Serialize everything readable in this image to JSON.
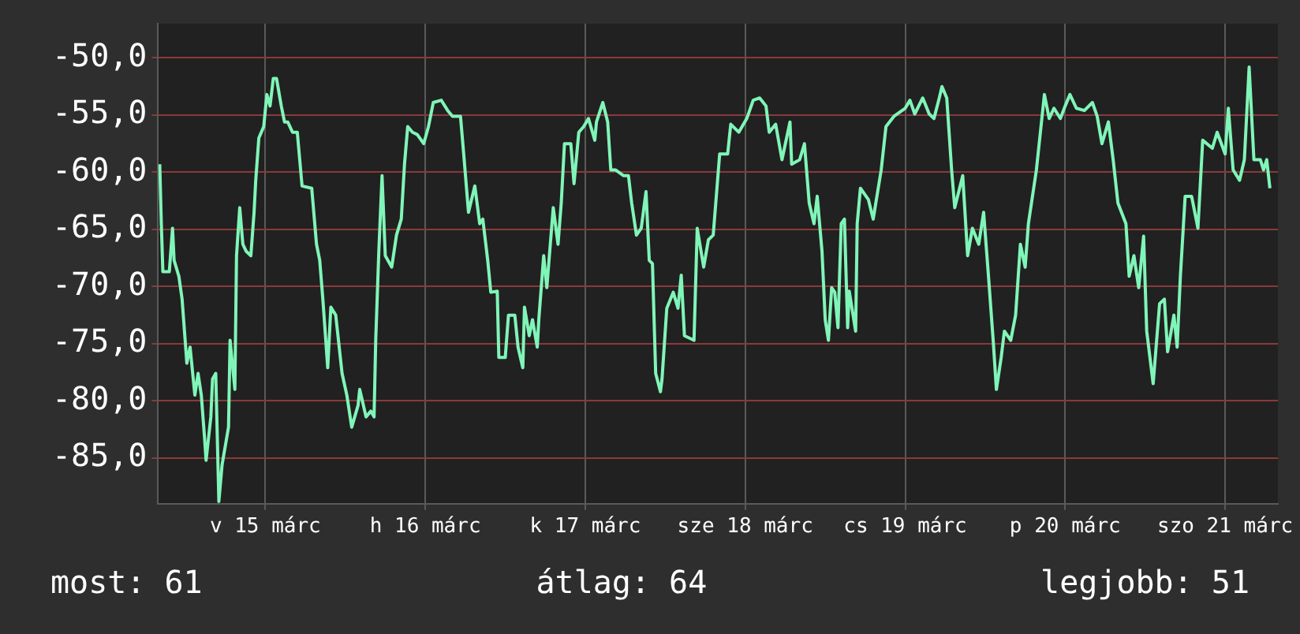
{
  "chart_data": {
    "type": "line",
    "annotations": [
      "most: 61",
      "átlag: 64",
      "legjobb: 51"
    ],
    "xlim": [
      "--03-14T19:55",
      "--03-21T19:55"
    ],
    "xticks": [
      {
        "value": "--03-15T12:00",
        "label": "v 15 márc"
      },
      {
        "value": "--03-16T12:00",
        "label": "h 16 márc"
      },
      {
        "value": "--03-17T12:00",
        "label": "k 17 márc"
      },
      {
        "value": "--03-18T12:00",
        "label": "sze 18 márc"
      },
      {
        "value": "--03-19T12:00",
        "label": "cs 19 márc"
      },
      {
        "value": "--03-20T12:00",
        "label": "p 20 márc"
      },
      {
        "value": "--03-21T12:00",
        "label": "szo 21 márc"
      }
    ],
    "ylim": [
      -89,
      -47
    ],
    "yticks": [
      {
        "value": -85,
        "label": "-85,0"
      },
      {
        "value": -80,
        "label": "-80,0"
      },
      {
        "value": -75,
        "label": "-75,0"
      },
      {
        "value": -70,
        "label": "-70,0"
      },
      {
        "value": -65,
        "label": "-65,0"
      },
      {
        "value": -60,
        "label": "-60,0"
      },
      {
        "value": -55,
        "label": "-55,0"
      },
      {
        "value": -50,
        "label": "-50,0"
      }
    ],
    "grid": true,
    "line_style": "solid",
    "marker": "none",
    "legend": false,
    "series": [
      {
        "color": "#80f5b8",
        "x": [
          "--03-14T20:10",
          "--03-14T20:24",
          "--03-14T20:38",
          "--03-14T21:36",
          "--03-14T22:05",
          "--03-14T22:19",
          "--03-14T23:02",
          "--03-14T23:31",
          "--03-15T00:14",
          "--03-15T00:43",
          "--03-15T01:26",
          "--03-15T01:55",
          "--03-15T02:24",
          "--03-15T02:53",
          "--03-15T03:07",
          "--03-15T03:50",
          "--03-15T04:05",
          "--03-15T04:34",
          "--03-15T05:02",
          "--03-15T05:31",
          "--03-15T06:29",
          "--03-15T06:43",
          "--03-15T07:26",
          "--03-15T07:41",
          "--03-15T08:10",
          "--03-15T08:38",
          "--03-15T09:07",
          "--03-15T09:50",
          "--03-15T10:19",
          "--03-15T10:34",
          "--03-15T11:02",
          "--03-15T11:46",
          "--03-15T12:14",
          "--03-15T12:43",
          "--03-15T13:12",
          "--03-15T13:41",
          "--03-15T14:24",
          "--03-15T14:53",
          "--03-15T15:22",
          "--03-15T16:05",
          "--03-15T16:48",
          "--03-15T17:31",
          "--03-15T18:58",
          "--03-15T19:41",
          "--03-15T20:10",
          "--03-15T20:38",
          "--03-15T21:22",
          "--03-15T21:50",
          "--03-15T22:34",
          "--03-15T23:31",
          "--03-16T00:14",
          "--03-16T00:58",
          "--03-16T01:55",
          "--03-16T02:10",
          "--03-16T03:07",
          "--03-16T03:50",
          "--03-16T04:19",
          "--03-16T04:34",
          "--03-16T05:02",
          "--03-16T05:31",
          "--03-16T06:00",
          "--03-16T06:58",
          "--03-16T07:41",
          "--03-16T08:24",
          "--03-16T08:53",
          "--03-16T09:22",
          "--03-16T10:05",
          "--03-16T10:48",
          "--03-16T11:46",
          "--03-16T12:29",
          "--03-16T13:12",
          "--03-16T14:24",
          "--03-16T15:22",
          "--03-16T16:05",
          "--03-16T17:17",
          "--03-16T17:46",
          "--03-16T18:29",
          "--03-16T19:26",
          "--03-16T20:10",
          "--03-16T20:38",
          "--03-16T21:22",
          "--03-16T21:50",
          "--03-16T22:48",
          "--03-16T23:02",
          "--03-17T00:00",
          "--03-17T00:29",
          "--03-17T01:26",
          "--03-17T01:55",
          "--03-17T02:38",
          "--03-17T02:53",
          "--03-17T03:36",
          "--03-17T04:05",
          "--03-17T04:48",
          "--03-17T05:02",
          "--03-17T05:46",
          "--03-17T06:14",
          "--03-17T07:12",
          "--03-17T07:55",
          "--03-17T08:24",
          "--03-17T08:53",
          "--03-17T09:50",
          "--03-17T10:19",
          "--03-17T11:02",
          "--03-17T11:46",
          "--03-17T12:29",
          "--03-17T13:26",
          "--03-17T13:41",
          "--03-17T14:38",
          "--03-17T15:22",
          "--03-17T15:50",
          "--03-17T16:34",
          "--03-17T17:46",
          "--03-17T18:29",
          "--03-17T18:58",
          "--03-17T19:41",
          "--03-17T20:24",
          "--03-17T21:07",
          "--03-17T21:36",
          "--03-17T22:05",
          "--03-17T22:34",
          "--03-17T23:17",
          "--03-17T23:31",
          "--03-18T00:14",
          "--03-18T01:12",
          "--03-18T01:55",
          "--03-18T02:24",
          "--03-18T02:53",
          "--03-18T04:19",
          "--03-18T04:48",
          "--03-18T05:46",
          "--03-18T06:29",
          "--03-18T07:12",
          "--03-18T08:10",
          "--03-18T09:22",
          "--03-18T09:50",
          "--03-18T11:02",
          "--03-18T12:14",
          "--03-18T13:12",
          "--03-18T14:10",
          "--03-18T15:07",
          "--03-18T15:36",
          "--03-18T16:34",
          "--03-18T17:31",
          "--03-18T18:43",
          "--03-18T18:58",
          "--03-18T20:10",
          "--03-18T20:53",
          "--03-18T21:36",
          "--03-18T22:19",
          "--03-18T22:48",
          "--03-18T23:31",
          "--03-19T00:00",
          "--03-19T00:29",
          "--03-19T00:58",
          "--03-19T01:26",
          "--03-19T01:55",
          "--03-19T02:24",
          "--03-19T02:53",
          "--03-19T03:22",
          "--03-19T03:36",
          "--03-19T04:34",
          "--03-19T04:48",
          "--03-19T05:17",
          "--03-19T06:29",
          "--03-19T07:12",
          "--03-19T08:24",
          "--03-19T09:07",
          "--03-19T10:19",
          "--03-19T12:00",
          "--03-19T12:43",
          "--03-19T13:26",
          "--03-19T14:38",
          "--03-19T15:36",
          "--03-19T16:19",
          "--03-19T17:02",
          "--03-19T17:31",
          "--03-19T18:14",
          "--03-19T18:58",
          "--03-19T19:26",
          "--03-19T20:38",
          "--03-19T21:22",
          "--03-19T22:05",
          "--03-19T23:02",
          "--03-19T23:46",
          "--03-20T00:29",
          "--03-20T01:12",
          "--03-20T01:41",
          "--03-20T02:24",
          "--03-20T02:53",
          "--03-20T03:50",
          "--03-20T04:34",
          "--03-20T05:17",
          "--03-20T06:00",
          "--03-20T06:29",
          "--03-20T07:41",
          "--03-20T08:53",
          "--03-20T09:36",
          "--03-20T10:19",
          "--03-20T11:17",
          "--03-20T12:00",
          "--03-20T12:43",
          "--03-20T13:41",
          "--03-20T14:53",
          "--03-20T16:05",
          "--03-20T16:48",
          "--03-20T17:31",
          "--03-20T18:29",
          "--03-20T19:12",
          "--03-20T19:55",
          "--03-20T21:07",
          "--03-20T21:36",
          "--03-20T22:19",
          "--03-20T23:02",
          "--03-20T23:46",
          "--03-21T00:14",
          "--03-21T01:12",
          "--03-21T02:10",
          "--03-21T02:53",
          "--03-21T03:22",
          "--03-21T04:19",
          "--03-21T04:48",
          "--03-21T05:17",
          "--03-21T06:00",
          "--03-21T06:58",
          "--03-21T07:55",
          "--03-21T08:38",
          "--03-21T10:05",
          "--03-21T10:48",
          "--03-21T12:00",
          "--03-21T12:29",
          "--03-21T13:12",
          "--03-21T14:10",
          "--03-21T14:53",
          "--03-21T15:36",
          "--03-21T16:19",
          "--03-21T17:17",
          "--03-21T17:46",
          "--03-21T18:14",
          "--03-21T18:43"
        ],
        "values": [
          -59.3,
          -64.5,
          -68.7,
          -68.7,
          -64.9,
          -67.7,
          -69.1,
          -71.1,
          -76.7,
          -75.3,
          -79.5,
          -77.6,
          -79.5,
          -83.2,
          -85.2,
          -81.4,
          -78.1,
          -77.6,
          -88.8,
          -85.6,
          -82.3,
          -74.7,
          -79.0,
          -67.3,
          -63.1,
          -66.3,
          -66.9,
          -67.3,
          -63.5,
          -60.7,
          -57.0,
          -56.0,
          -53.2,
          -54.2,
          -51.8,
          -51.8,
          -54.2,
          -55.6,
          -55.6,
          -56.5,
          -56.5,
          -61.2,
          -61.4,
          -66.3,
          -67.7,
          -71.1,
          -77.1,
          -71.8,
          -72.5,
          -77.6,
          -79.5,
          -82.3,
          -80.4,
          -79.0,
          -81.4,
          -80.9,
          -81.4,
          -74.7,
          -66.9,
          -60.3,
          -67.3,
          -68.3,
          -65.5,
          -64.1,
          -59.3,
          -56.0,
          -56.5,
          -56.7,
          -57.5,
          -56.0,
          -53.9,
          -53.7,
          -54.6,
          -55.1,
          -55.1,
          -58.4,
          -63.5,
          -61.2,
          -64.5,
          -64.1,
          -67.7,
          -70.5,
          -70.4,
          -76.2,
          -76.2,
          -72.5,
          -72.5,
          -75.3,
          -77.1,
          -71.8,
          -74.3,
          -72.9,
          -75.3,
          -72.9,
          -67.3,
          -70.1,
          -63.1,
          -66.3,
          -62.7,
          -57.5,
          -57.5,
          -61.0,
          -56.5,
          -56.0,
          -55.3,
          -57.2,
          -55.6,
          -53.9,
          -55.6,
          -59.8,
          -59.8,
          -60.3,
          -60.3,
          -62.7,
          -65.5,
          -64.9,
          -61.7,
          -67.7,
          -68.0,
          -77.6,
          -79.2,
          -78.1,
          -71.9,
          -70.5,
          -71.9,
          -69.0,
          -74.3,
          -74.7,
          -64.9,
          -68.3,
          -65.9,
          -65.5,
          -58.4,
          -58.4,
          -55.8,
          -56.5,
          -55.3,
          -53.7,
          -53.5,
          -54.2,
          -56.5,
          -55.8,
          -58.9,
          -55.6,
          -59.3,
          -58.9,
          -57.5,
          -62.7,
          -64.5,
          -62.1,
          -66.9,
          -72.9,
          -74.7,
          -70.1,
          -70.5,
          -73.6,
          -64.5,
          -64.1,
          -73.6,
          -70.4,
          -73.9,
          -64.5,
          -61.4,
          -62.4,
          -64.1,
          -59.8,
          -56.0,
          -55.1,
          -54.4,
          -53.7,
          -54.9,
          -53.5,
          -54.9,
          -55.3,
          -53.7,
          -52.5,
          -53.5,
          -59.8,
          -63.1,
          -60.3,
          -67.3,
          -64.9,
          -66.3,
          -63.5,
          -69.0,
          -74.7,
          -79.0,
          -76.2,
          -73.9,
          -74.7,
          -72.5,
          -66.3,
          -68.3,
          -64.5,
          -59.8,
          -53.2,
          -55.3,
          -54.4,
          -55.3,
          -54.2,
          -53.2,
          -54.4,
          -54.6,
          -53.9,
          -55.1,
          -57.5,
          -55.6,
          -58.9,
          -62.7,
          -64.5,
          -69.1,
          -67.3,
          -70.1,
          -65.6,
          -73.9,
          -78.5,
          -71.5,
          -71.1,
          -75.7,
          -72.5,
          -75.3,
          -69.1,
          -62.1,
          -62.1,
          -64.9,
          -57.2,
          -57.9,
          -56.5,
          -58.4,
          -54.4,
          -59.8,
          -60.7,
          -58.9,
          -50.8,
          -58.9,
          -58.9,
          -59.8,
          -58.9,
          -61.4
        ]
      }
    ]
  }
}
